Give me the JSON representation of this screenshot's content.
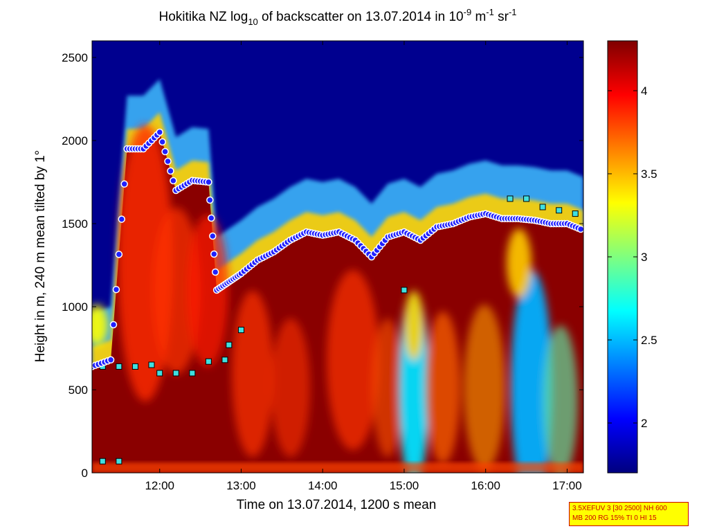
{
  "chart_data": {
    "type": "heatmap",
    "title": {
      "part1": "Hokitika NZ log",
      "sub": "10",
      "part2": " of backscatter on 13.07.2014 in 10",
      "sup1": "-9",
      "part3": " m",
      "sup2": "-1",
      "part4": " sr",
      "sup3": "-1"
    },
    "xlabel": "Time on 13.07.2014, 1200 s mean",
    "ylabel": "Height in m, 240 m mean tilted by 1°",
    "xlim": [
      11.17,
      17.2
    ],
    "ylim": [
      0,
      2600
    ],
    "xticks": [
      12,
      13,
      14,
      15,
      16,
      17
    ],
    "xtick_labels": [
      "12:00",
      "13:00",
      "14:00",
      "15:00",
      "16:00",
      "17:00"
    ],
    "yticks": [
      0,
      500,
      1000,
      1500,
      2000,
      2500
    ],
    "ytick_labels": [
      "0",
      "500",
      "1000",
      "1500",
      "2000",
      "2500"
    ],
    "colorbar": {
      "range": [
        1.7,
        4.3
      ],
      "ticks": [
        2,
        2.5,
        3,
        3.5,
        4
      ],
      "tick_labels": [
        "2",
        "2.5",
        "3",
        "3.5",
        "4"
      ],
      "colormap": "jet"
    },
    "cloud_base_heights": [
      {
        "t": 11.3,
        "h": 640
      },
      {
        "t": 11.5,
        "h": 640
      },
      {
        "t": 11.7,
        "h": 640
      },
      {
        "t": 11.9,
        "h": 650
      },
      {
        "t": 12.0,
        "h": 600
      },
      {
        "t": 12.2,
        "h": 600
      },
      {
        "t": 12.4,
        "h": 600
      },
      {
        "t": 12.6,
        "h": 670
      },
      {
        "t": 12.8,
        "h": 680
      },
      {
        "t": 12.85,
        "h": 770
      },
      {
        "t": 13.0,
        "h": 860
      },
      {
        "t": 15.0,
        "h": 1100
      },
      {
        "t": 16.3,
        "h": 1650
      },
      {
        "t": 16.5,
        "h": 1650
      },
      {
        "t": 16.7,
        "h": 1600
      },
      {
        "t": 16.9,
        "h": 1580
      },
      {
        "t": 17.1,
        "h": 1560
      },
      {
        "t": 11.3,
        "h": 70
      },
      {
        "t": 11.5,
        "h": 70
      }
    ],
    "boundary_layer_top": [
      {
        "t": 11.17,
        "h": 640
      },
      {
        "t": 11.4,
        "h": 680
      },
      {
        "t": 11.6,
        "h": 1950
      },
      {
        "t": 11.8,
        "h": 1950
      },
      {
        "t": 12.0,
        "h": 2050
      },
      {
        "t": 12.2,
        "h": 1700
      },
      {
        "t": 12.4,
        "h": 1760
      },
      {
        "t": 12.6,
        "h": 1750
      },
      {
        "t": 12.7,
        "h": 1100
      },
      {
        "t": 12.85,
        "h": 1150
      },
      {
        "t": 13.0,
        "h": 1200
      },
      {
        "t": 13.2,
        "h": 1280
      },
      {
        "t": 13.4,
        "h": 1330
      },
      {
        "t": 13.6,
        "h": 1400
      },
      {
        "t": 13.8,
        "h": 1450
      },
      {
        "t": 14.0,
        "h": 1430
      },
      {
        "t": 14.2,
        "h": 1450
      },
      {
        "t": 14.4,
        "h": 1400
      },
      {
        "t": 14.6,
        "h": 1300
      },
      {
        "t": 14.8,
        "h": 1420
      },
      {
        "t": 15.0,
        "h": 1450
      },
      {
        "t": 15.2,
        "h": 1400
      },
      {
        "t": 15.4,
        "h": 1480
      },
      {
        "t": 15.6,
        "h": 1500
      },
      {
        "t": 15.8,
        "h": 1540
      },
      {
        "t": 16.0,
        "h": 1560
      },
      {
        "t": 16.2,
        "h": 1530
      },
      {
        "t": 16.4,
        "h": 1530
      },
      {
        "t": 16.6,
        "h": 1520
      },
      {
        "t": 16.8,
        "h": 1500
      },
      {
        "t": 17.0,
        "h": 1500
      },
      {
        "t": 17.2,
        "h": 1460
      }
    ]
  },
  "info_box": {
    "line1": "3.5XEFUV 3 [30 2500] NH 600",
    "line2": "MB 200 RG 15% TI 0 HI 15"
  }
}
